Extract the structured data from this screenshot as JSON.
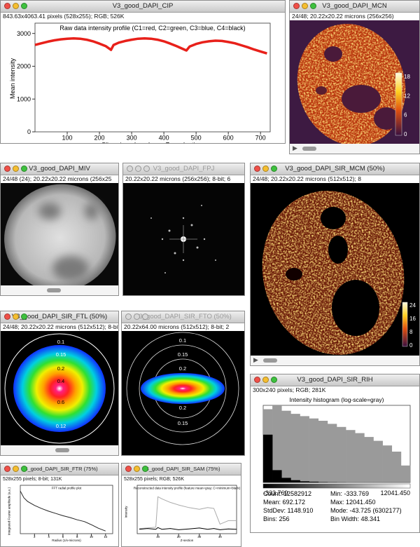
{
  "windows": [
    {
      "title": "V3_good_DAPI_CIP",
      "info": "843.63x4063.41 pixels (528x255); RGB; 526K"
    },
    {
      "title": "V3_good_DAPI_MCN",
      "info": "24/48; 20.22x20.22 microns (256x256)"
    },
    {
      "title": "V3_good_DAPI_MIV",
      "info": "24/48 (24); 20.22x20.22 microns (256x25"
    },
    {
      "title": "V3_good_DAPI_FPJ",
      "info": "20.22x20.22 microns (256x256); 8-bit; 6"
    },
    {
      "title": "V3_good_DAPI_SIR_MCM (50%)",
      "info": "24/48; 20.22x20.22 microns (512x512); 8"
    },
    {
      "title": "V3_good_DAPI_SIR_FTL (50%)",
      "info": "24/48; 20.22x20.22 microns (512x512); 8-bit"
    },
    {
      "title": "V3_good_DAPI_SIR_FTO (50%)",
      "info": "20.22x64.00 microns (512x512); 8-bit; 2"
    },
    {
      "title": "V3_good_DAPI_SIR_RIH",
      "info": "300x240 pixels; RGB; 281K"
    },
    {
      "title": "V3_good_DAPI_SIR_FTR (75%)",
      "info": "528x255 pixels; 8-bit; 131K"
    },
    {
      "title": "V3_good_DAPI_SIR_SAM (75%)",
      "info": "528x255 pixels; RGB; 526K"
    }
  ],
  "cip_plot": {
    "type": "line",
    "title": "Raw data intensity profile (C1=red, C2=green, C3=blue, C4=black)",
    "xlabel": "Slices in order: phase, Z, angle, time",
    "ylabel": "Mean intensity",
    "color": "#e8201a",
    "x": [
      0,
      20,
      40,
      60,
      80,
      100,
      120,
      140,
      160,
      180,
      200,
      220,
      236,
      244,
      260,
      280,
      300,
      320,
      340,
      360,
      380,
      400,
      420,
      440,
      470,
      480,
      500,
      520,
      540,
      560,
      580,
      600,
      620,
      640,
      660,
      680,
      700,
      720
    ],
    "values": [
      2650,
      2700,
      2750,
      2790,
      2820,
      2840,
      2850,
      2840,
      2810,
      2760,
      2690,
      2610,
      2500,
      2650,
      2720,
      2770,
      2810,
      2840,
      2850,
      2840,
      2810,
      2760,
      2690,
      2610,
      2480,
      2600,
      2680,
      2730,
      2760,
      2780,
      2770,
      2740,
      2700,
      2640,
      2580,
      2510,
      2450,
      2390
    ],
    "xlim": [
      0,
      730
    ],
    "ylim": [
      0,
      3250
    ],
    "xticks": [
      100,
      200,
      300,
      400,
      500,
      600,
      700
    ],
    "yticks": [
      0,
      1000,
      2000,
      3000
    ]
  },
  "mcn_colorbar": [
    18,
    12,
    6,
    0
  ],
  "mcm_colorbar": [
    24,
    16,
    8,
    0
  ],
  "ftl_labels": [
    0.1,
    0.15,
    0.2,
    0.4,
    0.6,
    0.12
  ],
  "fto_labels": [
    0.1,
    0.15,
    0.2,
    0.2,
    0.15
  ],
  "histogram": {
    "title": "Intensity histogram (log-scale=gray)",
    "min_label": "-333.769",
    "max_label": "12041.450",
    "ylim": [
      0,
      1
    ],
    "log_counts": [
      0.95,
      1.0,
      0.93,
      0.89,
      0.86,
      0.83,
      0.8,
      0.76,
      0.72,
      0.68,
      0.64,
      0.59,
      0.54,
      0.48,
      0.4,
      0.22
    ],
    "counts": [
      0.62,
      0.16,
      0.06,
      0.03,
      0.015,
      0.01,
      0.005,
      0.003,
      0.002,
      0.001,
      0.001,
      0.001,
      0.001,
      0.001,
      0.001,
      0.001
    ],
    "stats": [
      "Count: 12582912",
      "Min: -333.769",
      "Mean: 692.172",
      "Max: 12041.450",
      "StdDev: 1148.910",
      "Mode: -43.725 (6302177)",
      "Bins: 256",
      "Bin Width: 48.341"
    ]
  },
  "ftr_plot": {
    "type": "line",
    "title": "FFT radial profile plot",
    "xlabel": "Radius (1/x-microns)",
    "ylabel": "Integrated Fourier amplitude (a.u.)",
    "x": [
      0,
      0.5,
      1,
      2,
      3,
      4,
      5,
      6,
      7,
      8,
      9,
      10,
      11,
      12
    ],
    "values": [
      0.95,
      0.8,
      0.72,
      0.63,
      0.56,
      0.5,
      0.45,
      0.4,
      0.36,
      0.31,
      0.27,
      0.2,
      0.12,
      0.06
    ],
    "xlim": [
      0,
      13
    ],
    "ylim": [
      0,
      1
    ],
    "xticks": [
      2,
      4,
      6,
      8,
      10,
      12
    ]
  },
  "sam_plot": {
    "type": "line",
    "title": "Reconstructed data intensity profile (feature mean=gray; C=minimum=black)",
    "xlabel": "Z-section",
    "ylabel": "Intensity",
    "x": [
      1,
      5,
      9,
      10,
      12,
      16,
      20,
      25,
      30,
      34,
      37,
      40,
      44,
      48
    ],
    "series": [
      {
        "color": "#aaaaaa",
        "values": [
          0.12,
          0.13,
          0.15,
          0.85,
          0.8,
          0.72,
          0.66,
          0.6,
          0.56,
          0.6,
          0.58,
          0.22,
          0.3,
          0.3
        ]
      },
      {
        "color": "#000000",
        "values": [
          0.1,
          0.12,
          0.1,
          0.14,
          0.1,
          0.12,
          0.09,
          0.11,
          0.13,
          0.1,
          0.12,
          0.09,
          0.11,
          0.1
        ]
      }
    ],
    "xlim": [
      0,
      48
    ],
    "ylim": [
      0,
      1
    ],
    "xticks": [
      10,
      20,
      30,
      40
    ]
  }
}
